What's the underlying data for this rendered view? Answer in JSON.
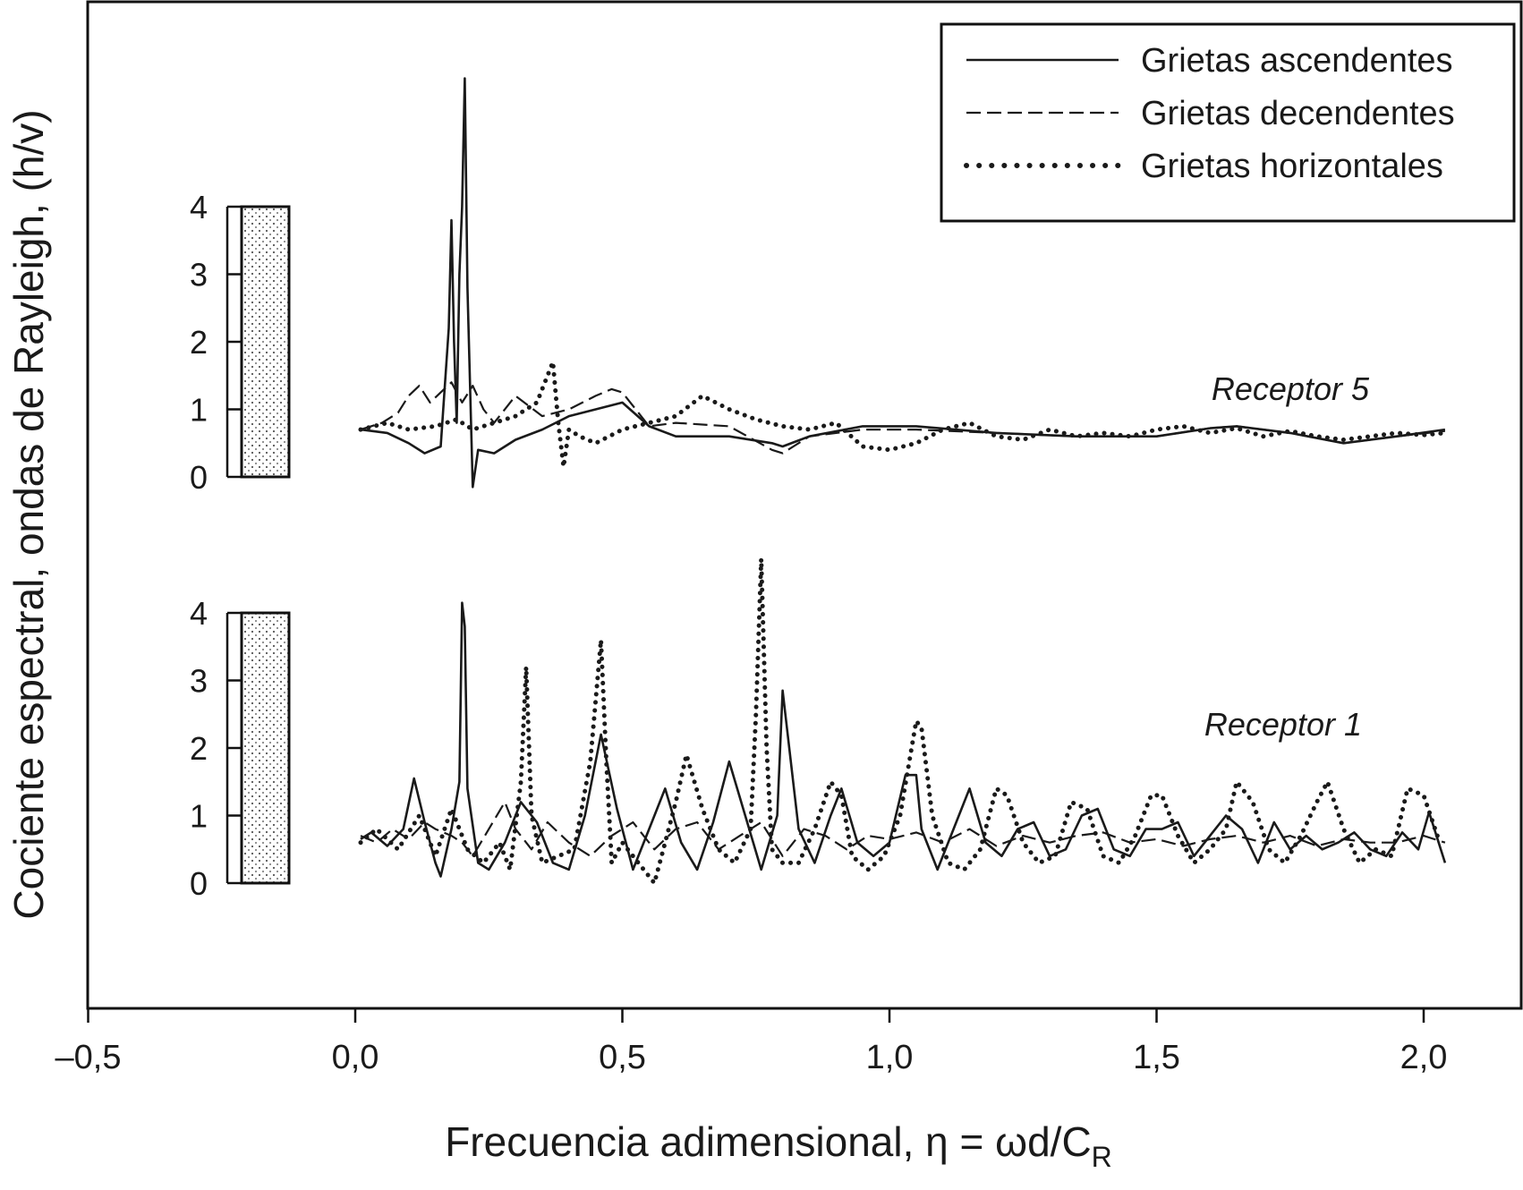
{
  "chart_data": {
    "type": "line",
    "xlabel": "Frecuencia adimensional, η = ωd/C",
    "xlabel_sub": "R",
    "ylabel": "Cociente espectral, ondas de Rayleigh, (h/v)",
    "xlim": [
      -0.5,
      2.2
    ],
    "x_ticks": [
      -0.5,
      0.0,
      0.5,
      1.0,
      1.5,
      2.0
    ],
    "x_tick_labels": [
      "–0,5",
      "0,0",
      "0,5",
      "1,0",
      "1,5",
      "2,0"
    ],
    "y_ticks": [
      0,
      1,
      2,
      3,
      4
    ],
    "y_tick_labels": [
      "0",
      "1",
      "2",
      "3",
      "4"
    ],
    "legend_position": "top-right",
    "legend": [
      {
        "label": "Grietas ascendentes",
        "style": "solid"
      },
      {
        "label": "Grietas decendentes",
        "style": "dashed"
      },
      {
        "label": "Grietas horizontales",
        "style": "dotted"
      }
    ],
    "panels": [
      {
        "label": "Receptor 5",
        "ylim": [
          0,
          4
        ],
        "series": [
          {
            "style": "solid",
            "x": [
              0.01,
              0.06,
              0.1,
              0.13,
              0.16,
              0.175,
              0.18,
              0.185,
              0.19,
              0.195,
              0.2,
              0.205,
              0.21,
              0.22,
              0.23,
              0.26,
              0.3,
              0.35,
              0.4,
              0.45,
              0.5,
              0.55,
              0.6,
              0.7,
              0.78,
              0.8,
              0.85,
              0.95,
              1.05,
              1.2,
              1.35,
              1.5,
              1.6,
              1.65,
              1.75,
              1.85,
              1.95,
              2.04
            ],
            "y": [
              0.7,
              0.65,
              0.5,
              0.35,
              0.45,
              2.2,
              3.8,
              2.0,
              0.8,
              3.0,
              4.0,
              5.9,
              2.8,
              -0.15,
              0.4,
              0.35,
              0.55,
              0.7,
              0.9,
              1.0,
              1.1,
              0.75,
              0.6,
              0.6,
              0.5,
              0.45,
              0.6,
              0.75,
              0.75,
              0.65,
              0.6,
              0.6,
              0.72,
              0.75,
              0.65,
              0.5,
              0.6,
              0.7
            ]
          },
          {
            "style": "dashed",
            "x": [
              0.01,
              0.05,
              0.08,
              0.1,
              0.12,
              0.14,
              0.16,
              0.18,
              0.2,
              0.22,
              0.24,
              0.26,
              0.3,
              0.35,
              0.4,
              0.45,
              0.48,
              0.5,
              0.55,
              0.6,
              0.7,
              0.78,
              0.8,
              0.85,
              0.95,
              1.05,
              1.2,
              1.35,
              1.5,
              1.6,
              1.65,
              1.75,
              1.85,
              1.95,
              2.04
            ],
            "y": [
              0.7,
              0.8,
              0.95,
              1.2,
              1.35,
              1.1,
              1.25,
              1.4,
              1.1,
              1.35,
              1.0,
              0.8,
              1.2,
              0.9,
              1.0,
              1.2,
              1.3,
              1.25,
              0.75,
              0.8,
              0.75,
              0.4,
              0.35,
              0.6,
              0.7,
              0.7,
              0.65,
              0.6,
              0.6,
              0.72,
              0.75,
              0.65,
              0.5,
              0.6,
              0.68
            ]
          },
          {
            "style": "dotted",
            "x": [
              0.01,
              0.06,
              0.1,
              0.15,
              0.19,
              0.22,
              0.26,
              0.3,
              0.34,
              0.37,
              0.38,
              0.39,
              0.4,
              0.42,
              0.45,
              0.5,
              0.55,
              0.6,
              0.65,
              0.7,
              0.75,
              0.8,
              0.85,
              0.9,
              0.95,
              1.0,
              1.05,
              1.1,
              1.15,
              1.2,
              1.25,
              1.3,
              1.35,
              1.4,
              1.45,
              1.5,
              1.55,
              1.6,
              1.65,
              1.7,
              1.75,
              1.8,
              1.85,
              1.9,
              1.95,
              2.0,
              2.04
            ],
            "y": [
              0.7,
              0.8,
              0.7,
              0.75,
              0.85,
              0.7,
              0.8,
              0.9,
              1.1,
              1.7,
              0.8,
              0.15,
              0.7,
              0.6,
              0.5,
              0.7,
              0.8,
              0.9,
              1.2,
              1.0,
              0.85,
              0.75,
              0.7,
              0.8,
              0.45,
              0.4,
              0.5,
              0.7,
              0.8,
              0.6,
              0.55,
              0.7,
              0.6,
              0.65,
              0.6,
              0.7,
              0.75,
              0.65,
              0.72,
              0.6,
              0.68,
              0.6,
              0.55,
              0.6,
              0.65,
              0.62,
              0.65
            ]
          }
        ]
      },
      {
        "label": "Receptor 1",
        "ylim": [
          0,
          4
        ],
        "series": [
          {
            "style": "solid",
            "x": [
              0.01,
              0.03,
              0.06,
              0.09,
              0.11,
              0.13,
              0.15,
              0.16,
              0.18,
              0.195,
              0.2,
              0.205,
              0.21,
              0.23,
              0.25,
              0.28,
              0.31,
              0.34,
              0.37,
              0.4,
              0.43,
              0.46,
              0.49,
              0.52,
              0.55,
              0.58,
              0.61,
              0.64,
              0.67,
              0.7,
              0.73,
              0.76,
              0.79,
              0.8,
              0.83,
              0.86,
              0.89,
              0.91,
              0.94,
              0.97,
              1.0,
              1.03,
              1.05,
              1.06,
              1.09,
              1.12,
              1.15,
              1.18,
              1.21,
              1.24,
              1.27,
              1.3,
              1.33,
              1.36,
              1.39,
              1.42,
              1.45,
              1.48,
              1.51,
              1.54,
              1.57,
              1.6,
              1.63,
              1.66,
              1.69,
              1.72,
              1.75,
              1.78,
              1.81,
              1.84,
              1.87,
              1.9,
              1.93,
              1.96,
              1.99,
              2.01,
              2.04
            ],
            "y": [
              0.65,
              0.75,
              0.55,
              0.8,
              1.55,
              0.9,
              0.3,
              0.1,
              0.8,
              1.5,
              4.15,
              3.8,
              1.4,
              0.3,
              0.2,
              0.6,
              1.2,
              0.9,
              0.3,
              0.2,
              1.0,
              2.2,
              1.1,
              0.2,
              0.8,
              1.4,
              0.6,
              0.2,
              0.9,
              1.8,
              1.0,
              0.2,
              1.0,
              2.85,
              0.8,
              0.3,
              1.0,
              1.4,
              0.6,
              0.4,
              0.6,
              1.6,
              1.6,
              0.8,
              0.2,
              0.8,
              1.4,
              0.6,
              0.4,
              0.8,
              0.9,
              0.4,
              0.5,
              1.0,
              1.1,
              0.5,
              0.4,
              0.8,
              0.8,
              0.9,
              0.4,
              0.7,
              1.0,
              0.8,
              0.3,
              0.9,
              0.5,
              0.7,
              0.5,
              0.6,
              0.75,
              0.5,
              0.4,
              0.75,
              0.5,
              1.05,
              0.3
            ]
          },
          {
            "style": "dashed",
            "x": [
              0.01,
              0.04,
              0.07,
              0.1,
              0.13,
              0.15,
              0.18,
              0.2,
              0.22,
              0.25,
              0.28,
              0.3,
              0.33,
              0.36,
              0.4,
              0.44,
              0.48,
              0.52,
              0.56,
              0.6,
              0.64,
              0.68,
              0.72,
              0.76,
              0.8,
              0.84,
              0.88,
              0.92,
              0.96,
              1.0,
              1.05,
              1.1,
              1.15,
              1.2,
              1.25,
              1.3,
              1.35,
              1.4,
              1.45,
              1.5,
              1.55,
              1.6,
              1.65,
              1.7,
              1.75,
              1.8,
              1.85,
              1.9,
              1.95,
              2.0,
              2.04
            ],
            "y": [
              0.7,
              0.6,
              0.8,
              0.65,
              0.9,
              0.8,
              0.7,
              0.6,
              0.4,
              0.8,
              1.2,
              0.8,
              0.5,
              0.9,
              0.6,
              0.4,
              0.7,
              0.9,
              0.5,
              0.8,
              0.9,
              0.5,
              0.7,
              0.9,
              0.4,
              0.8,
              0.7,
              0.5,
              0.7,
              0.65,
              0.75,
              0.6,
              0.8,
              0.55,
              0.7,
              0.6,
              0.7,
              0.75,
              0.6,
              0.65,
              0.55,
              0.65,
              0.7,
              0.6,
              0.7,
              0.55,
              0.65,
              0.6,
              0.6,
              0.7,
              0.6
            ]
          },
          {
            "style": "dotted",
            "x": [
              0.01,
              0.04,
              0.08,
              0.12,
              0.15,
              0.18,
              0.21,
              0.24,
              0.27,
              0.29,
              0.31,
              0.32,
              0.33,
              0.35,
              0.38,
              0.41,
              0.44,
              0.46,
              0.47,
              0.48,
              0.5,
              0.53,
              0.56,
              0.58,
              0.6,
              0.62,
              0.65,
              0.68,
              0.71,
              0.74,
              0.75,
              0.76,
              0.77,
              0.78,
              0.8,
              0.83,
              0.86,
              0.89,
              0.91,
              0.93,
              0.96,
              0.99,
              1.02,
              1.05,
              1.06,
              1.08,
              1.11,
              1.14,
              1.17,
              1.2,
              1.22,
              1.25,
              1.28,
              1.31,
              1.34,
              1.37,
              1.4,
              1.43,
              1.46,
              1.49,
              1.51,
              1.54,
              1.57,
              1.6,
              1.63,
              1.65,
              1.68,
              1.71,
              1.74,
              1.77,
              1.8,
              1.82,
              1.85,
              1.88,
              1.91,
              1.94,
              1.97,
              2.0,
              2.03
            ],
            "y": [
              0.6,
              0.8,
              0.5,
              1.0,
              0.4,
              1.1,
              0.5,
              0.3,
              0.6,
              0.2,
              1.5,
              3.2,
              1.0,
              0.3,
              0.4,
              0.5,
              1.8,
              3.6,
              1.8,
              0.3,
              0.6,
              0.3,
              0.0,
              0.6,
              1.2,
              1.9,
              1.1,
              0.5,
              0.3,
              0.8,
              2.5,
              4.8,
              2.0,
              0.5,
              0.3,
              0.3,
              0.8,
              1.5,
              1.3,
              0.4,
              0.2,
              0.4,
              1.0,
              2.4,
              2.3,
              1.0,
              0.3,
              0.2,
              0.5,
              1.4,
              1.3,
              0.6,
              0.3,
              0.4,
              1.2,
              1.1,
              0.4,
              0.3,
              0.7,
              1.3,
              1.3,
              0.7,
              0.3,
              0.5,
              0.8,
              1.5,
              1.2,
              0.5,
              0.3,
              0.7,
              1.2,
              1.5,
              0.8,
              0.3,
              0.5,
              0.4,
              1.4,
              1.3,
              0.6
            ]
          }
        ]
      }
    ]
  }
}
